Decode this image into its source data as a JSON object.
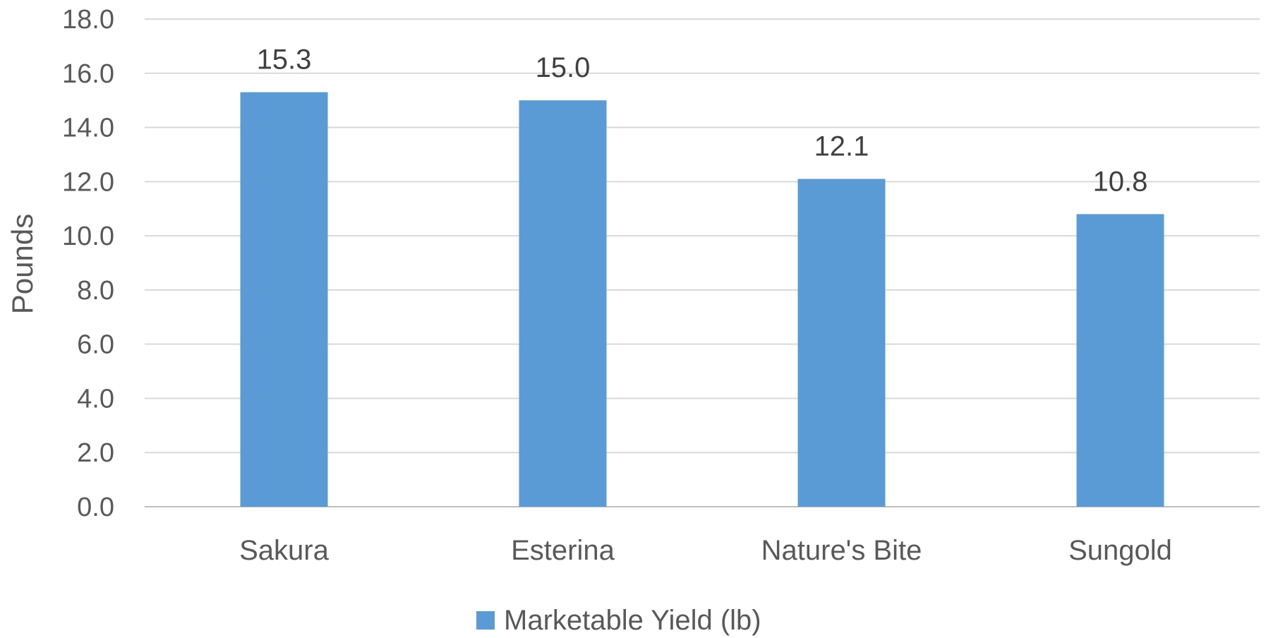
{
  "chart_data": {
    "type": "bar",
    "title": "",
    "xlabel": "",
    "ylabel": "Pounds",
    "categories": [
      "Sakura",
      "Esterina",
      "Nature's Bite",
      "Sungold"
    ],
    "series": [
      {
        "name": "Marketable Yield (lb)",
        "values": [
          15.3,
          15.0,
          12.1,
          10.8
        ],
        "color": "#5B9BD5"
      }
    ],
    "data_labels": [
      "15.3",
      "15.0",
      "12.1",
      "10.8"
    ],
    "ylim": [
      0,
      18
    ],
    "yticks": [
      "0.0",
      "2.0",
      "4.0",
      "6.0",
      "8.0",
      "10.0",
      "12.0",
      "14.0",
      "16.0",
      "18.0"
    ],
    "grid": true,
    "legend_position": "bottom"
  }
}
